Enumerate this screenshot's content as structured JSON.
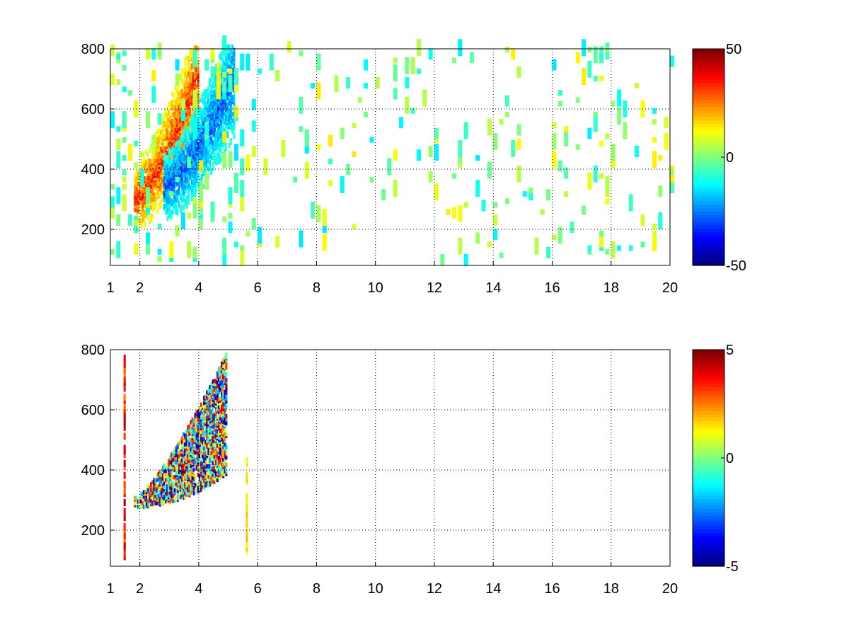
{
  "chart_data": [
    {
      "type": "heatmap",
      "title": "",
      "xlabel": "",
      "ylabel": "",
      "xlim": [
        1,
        20
      ],
      "ylim": [
        80,
        800
      ],
      "x_ticks": [
        1,
        2,
        4,
        6,
        8,
        10,
        12,
        14,
        16,
        18,
        20
      ],
      "y_ticks": [
        200,
        400,
        600,
        800
      ],
      "grid": true,
      "colorbar": {
        "min": -50,
        "max": 50,
        "ticks": [
          50,
          0,
          -50
        ],
        "colormap": "jet"
      },
      "features": [
        {
          "name": "positive ridge",
          "x_range": [
            1.8,
            4.0
          ],
          "y_at_x_start": 290,
          "y_at_x_end": 720,
          "value": 35
        },
        {
          "name": "negative ridge",
          "x_range": [
            2.8,
            5.2
          ],
          "y_at_x_start": 330,
          "y_at_x_end": 700,
          "value": -30
        },
        {
          "name": "sparse noise",
          "x_range": [
            1,
            20
          ],
          "y_range": [
            80,
            800
          ],
          "value_range": [
            -15,
            15
          ]
        }
      ]
    },
    {
      "type": "heatmap",
      "title": "",
      "xlabel": "",
      "ylabel": "",
      "xlim": [
        1,
        20
      ],
      "ylim": [
        80,
        800
      ],
      "x_ticks": [
        1,
        2,
        4,
        6,
        8,
        10,
        12,
        14,
        16,
        18,
        20
      ],
      "y_ticks": [
        200,
        400,
        600,
        800
      ],
      "grid": true,
      "colorbar": {
        "min": -5,
        "max": 5,
        "ticks": [
          5,
          0,
          -5
        ],
        "colormap": "jet"
      },
      "features": [
        {
          "name": "scattered band",
          "x_range": [
            1.8,
            4.9
          ],
          "y_at_x_start": 270,
          "y_at_x_end": 780,
          "value_range": [
            -5,
            5
          ]
        },
        {
          "name": "vertical streak",
          "x": 1.45,
          "y_range": [
            90,
            760
          ],
          "value": 5
        },
        {
          "name": "vertical streak",
          "x": 5.6,
          "y_range": [
            120,
            420
          ],
          "value": 2
        }
      ]
    }
  ]
}
